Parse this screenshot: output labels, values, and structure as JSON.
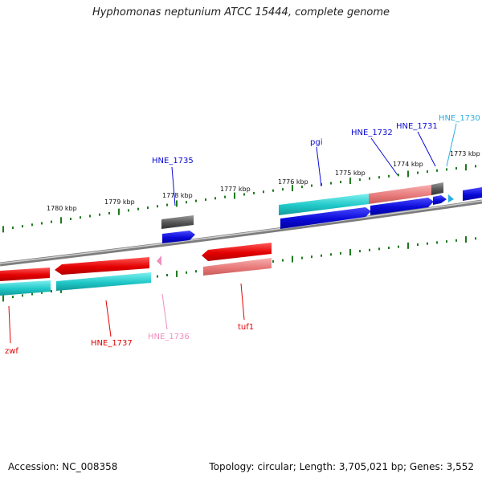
{
  "title": "Hyphomonas neptunium ATCC 15444, complete genome",
  "footer": {
    "accession": "Accession: NC_008358",
    "stats": "Topology: circular; Length: 3,705,021 bp; Genes: 3,552"
  },
  "colors": {
    "backbone": "#8a8a8a",
    "tick": "#1f7a1f",
    "red": "#e40000",
    "pink": "#e87a7a",
    "cyan": "#20c8c8",
    "blue": "#0a0ad8",
    "gray": "#555555",
    "label_pink": "#f08fbf",
    "label_cyan": "#2ab0e0"
  },
  "scale": {
    "unit": "kbp",
    "labels": [
      "1780 kbp",
      "1779 kbp",
      "1778 kbp",
      "1777 kbp",
      "1776 kbp",
      "1775 kbp",
      "1774 kbp",
      "1773 kbp"
    ]
  },
  "genes": [
    {
      "label": "zwf",
      "color": "red"
    },
    {
      "label": "HNE_1737",
      "color": "red"
    },
    {
      "label": "HNE_1736",
      "color": "label_pink"
    },
    {
      "label": "HNE_1735",
      "color": "blue"
    },
    {
      "label": "tuf1",
      "color": "red"
    },
    {
      "label": "pgi",
      "color": "blue"
    },
    {
      "label": "HNE_1732",
      "color": "blue"
    },
    {
      "label": "HNE_1731",
      "color": "blue"
    },
    {
      "label": "HNE_1730",
      "color": "label_cyan"
    }
  ]
}
